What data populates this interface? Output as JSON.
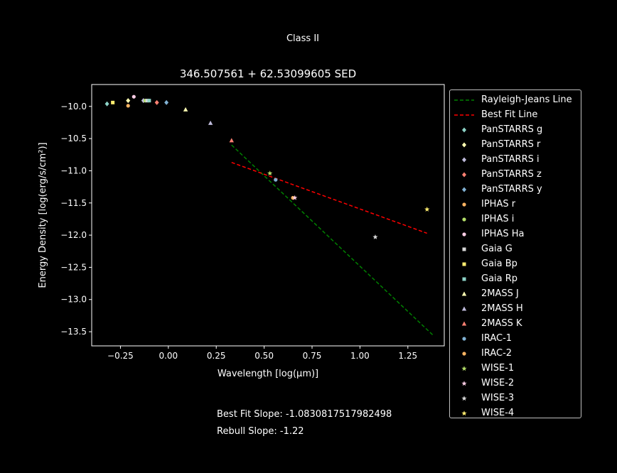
{
  "figure": {
    "suptitle": "Class II",
    "best_fit_slope_text": "Best Fit Slope: -1.0830817517982498",
    "rebull_slope_text": "Rebull Slope: -1.22"
  },
  "chart_data": {
    "type": "scatter",
    "title": "346.507561 + 62.53099605 SED",
    "xlabel": "Wavelength [log(μm)]",
    "ylabel": "Energy Density [log(erg/s/cm²)]",
    "xlim": [
      -0.4,
      1.44
    ],
    "ylim": [
      -13.72,
      -9.66
    ],
    "xticks": [
      -0.25,
      0.0,
      0.25,
      0.5,
      0.75,
      1.0,
      1.25
    ],
    "xtick_labels": [
      "−0.25",
      "0.00",
      "0.25",
      "0.50",
      "0.75",
      "1.00",
      "1.25"
    ],
    "yticks": [
      -10.0,
      -10.5,
      -11.0,
      -11.5,
      -12.0,
      -12.5,
      -13.0,
      -13.5
    ],
    "ytick_labels": [
      "−10.0",
      "−10.5",
      "−11.0",
      "−11.5",
      "−12.0",
      "−12.5",
      "−13.0",
      "−13.5"
    ],
    "grid": false,
    "legend_position": "outside-right",
    "lines": [
      {
        "name": "Rayleigh-Jeans Line",
        "color": "#008000",
        "dash": true,
        "x": [
          0.33,
          1.38
        ],
        "y": [
          -10.6,
          -13.55
        ]
      },
      {
        "name": "Best Fit Line",
        "color": "#ff0000",
        "dash": true,
        "x": [
          0.33,
          1.35
        ],
        "y": [
          -10.87,
          -11.97
        ]
      }
    ],
    "series": [
      {
        "name": "PanSTARRS g",
        "marker": "diamond",
        "color": "#8dd3c7",
        "x": [
          -0.32
        ],
        "y": [
          -9.96
        ]
      },
      {
        "name": "PanSTARRS r",
        "marker": "diamond",
        "color": "#ffffb3",
        "x": [
          -0.21
        ],
        "y": [
          -9.91
        ]
      },
      {
        "name": "PanSTARRS i",
        "marker": "diamond",
        "color": "#bebada",
        "x": [
          -0.13
        ],
        "y": [
          -9.91
        ]
      },
      {
        "name": "PanSTARRS z",
        "marker": "diamond",
        "color": "#fb8072",
        "x": [
          -0.06
        ],
        "y": [
          -9.94
        ]
      },
      {
        "name": "PanSTARRS y",
        "marker": "diamond",
        "color": "#80b1d3",
        "x": [
          -0.01
        ],
        "y": [
          -9.94
        ]
      },
      {
        "name": "IPHAS r",
        "marker": "circle",
        "color": "#fdb462",
        "x": [
          -0.21
        ],
        "y": [
          -9.99
        ]
      },
      {
        "name": "IPHAS i",
        "marker": "circle",
        "color": "#b3de69",
        "x": [
          -0.12
        ],
        "y": [
          -9.91
        ]
      },
      {
        "name": "IPHAS Ha",
        "marker": "circle",
        "color": "#fccde5",
        "x": [
          -0.18
        ],
        "y": [
          -9.85
        ]
      },
      {
        "name": "Gaia G",
        "marker": "square",
        "color": "#d9d9d9",
        "x": [
          -0.11
        ],
        "y": [
          -9.91
        ]
      },
      {
        "name": "Gaia Bp",
        "marker": "square",
        "color": "#ffed6f",
        "x": [
          -0.29
        ],
        "y": [
          -9.94
        ]
      },
      {
        "name": "Gaia Rp",
        "marker": "square",
        "color": "#8dd3c7",
        "x": [
          -0.1
        ],
        "y": [
          -9.91
        ]
      },
      {
        "name": "2MASS J",
        "marker": "triangle",
        "color": "#ffffb3",
        "x": [
          0.09
        ],
        "y": [
          -10.05
        ]
      },
      {
        "name": "2MASS H",
        "marker": "triangle",
        "color": "#bebada",
        "x": [
          0.22
        ],
        "y": [
          -10.26
        ]
      },
      {
        "name": "2MASS K",
        "marker": "triangle",
        "color": "#fb8072",
        "x": [
          0.33
        ],
        "y": [
          -10.53
        ]
      },
      {
        "name": "IRAC-1",
        "marker": "circle",
        "color": "#80b1d3",
        "x": [
          0.56
        ],
        "y": [
          -11.14
        ]
      },
      {
        "name": "IRAC-2",
        "marker": "circle",
        "color": "#fdb462",
        "x": [
          0.65
        ],
        "y": [
          -11.42
        ]
      },
      {
        "name": "WISE-1",
        "marker": "star",
        "color": "#b3de69",
        "x": [
          0.53
        ],
        "y": [
          -11.04
        ]
      },
      {
        "name": "WISE-2",
        "marker": "star",
        "color": "#fccde5",
        "x": [
          0.66
        ],
        "y": [
          -11.42
        ]
      },
      {
        "name": "WISE-3",
        "marker": "star",
        "color": "#d9d9d9",
        "x": [
          1.08
        ],
        "y": [
          -12.03
        ]
      },
      {
        "name": "WISE-4",
        "marker": "star",
        "color": "#ffed6f",
        "x": [
          1.35
        ],
        "y": [
          -11.6
        ]
      }
    ]
  }
}
